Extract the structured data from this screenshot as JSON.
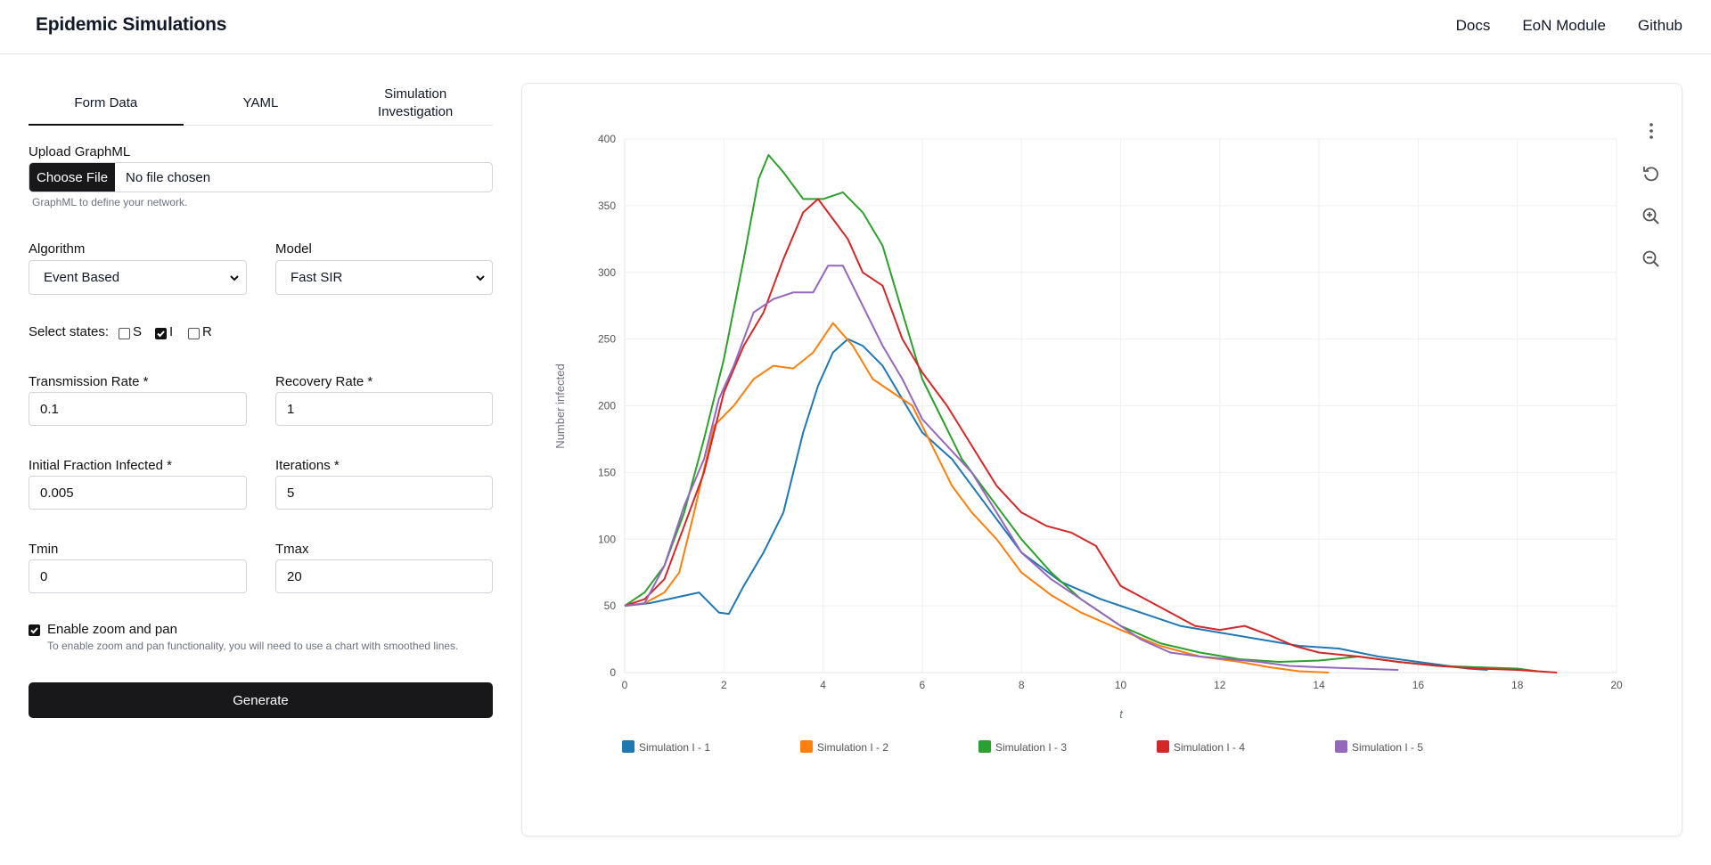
{
  "header": {
    "title": "Epidemic Simulations",
    "nav": [
      "Docs",
      "EoN Module",
      "Github"
    ]
  },
  "tabs": [
    {
      "label": "Form Data",
      "active": true
    },
    {
      "label": "YAML",
      "active": false
    },
    {
      "label": "Simulation Investigation",
      "active": false
    }
  ],
  "form": {
    "upload_label": "Upload GraphML",
    "upload_button": "Choose File",
    "upload_status": "No file chosen",
    "upload_help": "GraphML to define your network.",
    "algorithm_label": "Algorithm",
    "algorithm_value": "Event Based",
    "model_label": "Model",
    "model_value": "Fast SIR",
    "states_label": "Select states:",
    "states": [
      {
        "label": "S",
        "checked": false
      },
      {
        "label": "I",
        "checked": true
      },
      {
        "label": "R",
        "checked": false
      }
    ],
    "transmission_label": "Transmission Rate *",
    "transmission_value": "0.1",
    "recovery_label": "Recovery Rate *",
    "recovery_value": "1",
    "initial_label": "Initial Fraction Infected *",
    "initial_value": "0.005",
    "iterations_label": "Iterations *",
    "iterations_value": "5",
    "tmin_label": "Tmin",
    "tmin_value": "0",
    "tmax_label": "Tmax",
    "tmax_value": "20",
    "zoom_label": "Enable zoom and pan",
    "zoom_checked": true,
    "zoom_help": "To enable zoom and pan functionality, you will need to use a chart with smoothed lines.",
    "generate_label": "Generate"
  },
  "toolbar_icons": [
    "more-vertical-icon",
    "reset-icon",
    "zoom-in-icon",
    "zoom-out-icon"
  ],
  "chart_data": {
    "type": "line",
    "xlabel": "t",
    "ylabel": "Number infected",
    "xlim": [
      0,
      20
    ],
    "ylim": [
      0,
      400
    ],
    "xticks": [
      0,
      2,
      4,
      6,
      8,
      10,
      12,
      14,
      16,
      18,
      20
    ],
    "yticks": [
      0,
      50,
      100,
      150,
      200,
      250,
      300,
      350,
      400
    ],
    "grid": true,
    "legend": "bottom",
    "series": [
      {
        "name": "Simulation I - 1",
        "color": "#1f77b4",
        "x": [
          0,
          0.5,
          1,
          1.5,
          1.9,
          2.1,
          2.4,
          2.8,
          3.2,
          3.6,
          3.9,
          4.2,
          4.5,
          4.8,
          5.2,
          5.6,
          6,
          6.6,
          7.2,
          8,
          8.8,
          9.6,
          10.4,
          11.2,
          12,
          12.8,
          13.6,
          14.4,
          15.2,
          16,
          17,
          17.4
        ],
        "y": [
          50,
          52,
          56,
          60,
          45,
          44,
          65,
          90,
          120,
          180,
          215,
          240,
          250,
          245,
          230,
          205,
          180,
          160,
          130,
          90,
          68,
          55,
          45,
          35,
          30,
          25,
          20,
          18,
          12,
          8,
          3,
          2
        ]
      },
      {
        "name": "Simulation I - 2",
        "color": "#ff7f0e",
        "x": [
          0,
          0.4,
          0.8,
          1.1,
          1.4,
          1.8,
          2.2,
          2.6,
          3,
          3.4,
          3.8,
          4.2,
          4.6,
          5,
          5.4,
          5.8,
          6.2,
          6.6,
          7,
          7.5,
          8,
          8.6,
          9.2,
          10,
          10.8,
          11.6,
          12.4,
          13,
          13.6,
          14.2
        ],
        "y": [
          50,
          52,
          60,
          75,
          120,
          185,
          200,
          220,
          230,
          228,
          240,
          262,
          245,
          220,
          210,
          200,
          170,
          140,
          120,
          100,
          75,
          58,
          45,
          32,
          20,
          12,
          8,
          4,
          1,
          0
        ]
      },
      {
        "name": "Simulation I - 3",
        "color": "#2ca02c",
        "x": [
          0,
          0.4,
          0.8,
          1.2,
          1.6,
          2,
          2.4,
          2.7,
          2.9,
          3.2,
          3.6,
          4,
          4.4,
          4.8,
          5.2,
          5.6,
          6,
          6.4,
          6.8,
          7.2,
          7.6,
          8,
          8.6,
          9.2,
          10,
          10.8,
          11.6,
          12.4,
          13.2,
          14,
          14.8,
          15.6,
          16.4,
          17.2,
          18,
          18.4
        ],
        "y": [
          50,
          60,
          80,
          120,
          175,
          235,
          310,
          370,
          388,
          375,
          355,
          355,
          360,
          345,
          320,
          270,
          220,
          190,
          160,
          140,
          120,
          100,
          75,
          55,
          35,
          22,
          15,
          10,
          8,
          9,
          12,
          8,
          5,
          4,
          3,
          1
        ]
      },
      {
        "name": "Simulation I - 4",
        "color": "#d62728",
        "x": [
          0,
          0.4,
          0.8,
          1.2,
          1.6,
          2,
          2.4,
          2.8,
          3.2,
          3.6,
          3.9,
          4.2,
          4.5,
          4.8,
          5.2,
          5.6,
          6,
          6.5,
          7,
          7.5,
          8,
          8.5,
          9,
          9.5,
          10,
          10.5,
          11,
          11.5,
          12,
          12.5,
          13,
          13.5,
          14,
          14.8,
          15.6,
          16.4,
          17.2,
          18,
          18.8
        ],
        "y": [
          50,
          55,
          70,
          110,
          150,
          210,
          245,
          270,
          310,
          345,
          355,
          340,
          325,
          300,
          290,
          250,
          225,
          200,
          170,
          140,
          120,
          110,
          105,
          95,
          65,
          55,
          45,
          35,
          32,
          35,
          28,
          20,
          15,
          12,
          8,
          5,
          3,
          2,
          0
        ]
      },
      {
        "name": "Simulation I - 5",
        "color": "#9467bd",
        "x": [
          0,
          0.4,
          0.8,
          1.2,
          1.6,
          1.9,
          2.2,
          2.6,
          3,
          3.4,
          3.8,
          4.1,
          4.4,
          4.8,
          5.2,
          5.6,
          6,
          6.5,
          7,
          7.5,
          8,
          8.6,
          9.2,
          9.8,
          10.4,
          11,
          11.6,
          12.2,
          12.8,
          13.4,
          14,
          14.8,
          15.6
        ],
        "y": [
          50,
          52,
          80,
          125,
          160,
          205,
          230,
          270,
          280,
          285,
          285,
          305,
          305,
          275,
          245,
          220,
          190,
          170,
          150,
          120,
          90,
          70,
          55,
          40,
          25,
          15,
          12,
          10,
          8,
          5,
          4,
          3,
          2
        ]
      }
    ]
  }
}
